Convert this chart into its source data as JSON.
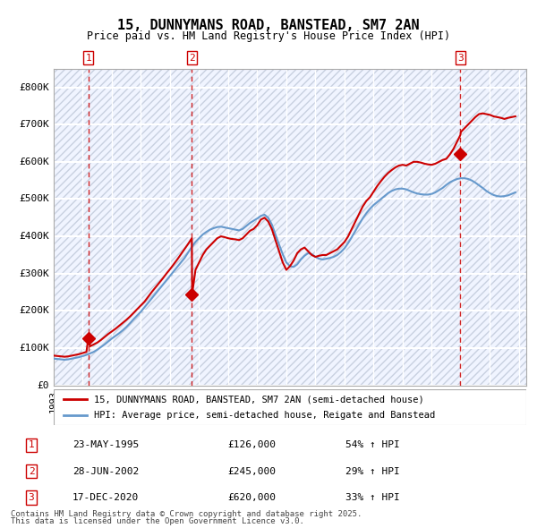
{
  "title": "15, DUNNYMANS ROAD, BANSTEAD, SM7 2AN",
  "subtitle": "Price paid vs. HM Land Registry's House Price Index (HPI)",
  "red_line_label": "15, DUNNYMANS ROAD, BANSTEAD, SM7 2AN (semi-detached house)",
  "blue_line_label": "HPI: Average price, semi-detached house, Reigate and Banstead",
  "sale_dates": [
    "1995-05-23",
    "2002-06-28",
    "2020-12-17"
  ],
  "sale_prices": [
    126000,
    245000,
    620000
  ],
  "sale_labels": [
    "1",
    "2",
    "3"
  ],
  "sale_hpi_pct": [
    "54% ↑ HPI",
    "29% ↑ HPI",
    "33% ↑ HPI"
  ],
  "sale_dates_display": [
    "23-MAY-1995",
    "28-JUN-2002",
    "17-DEC-2020"
  ],
  "sale_prices_display": [
    "£126,000",
    "£245,000",
    "£620,000"
  ],
  "footnote1": "Contains HM Land Registry data © Crown copyright and database right 2025.",
  "footnote2": "This data is licensed under the Open Government Licence v3.0.",
  "ylim": [
    0,
    850000
  ],
  "yticks": [
    0,
    100000,
    200000,
    300000,
    400000,
    500000,
    600000,
    700000,
    800000
  ],
  "ytick_labels": [
    "£0",
    "£100K",
    "£200K",
    "£300K",
    "£400K",
    "£500K",
    "£600K",
    "£700K",
    "£800K"
  ],
  "red_color": "#cc0000",
  "blue_color": "#6699cc",
  "background_color": "#ffffff",
  "plot_bg_color": "#f0f4ff",
  "grid_color": "#ffffff",
  "hatch_color": "#c8d0e0",
  "vline_color": "#cc0000",
  "label_box_color": "#cc0000",
  "red_data": {
    "years": [
      1993.0,
      1993.25,
      1993.5,
      1993.75,
      1994.0,
      1994.25,
      1994.5,
      1994.75,
      1995.0,
      1995.25,
      1995.38,
      1995.5,
      1995.75,
      1996.0,
      1996.25,
      1996.5,
      1996.75,
      1997.0,
      1997.25,
      1997.5,
      1997.75,
      1998.0,
      1998.25,
      1998.5,
      1998.75,
      1999.0,
      1999.25,
      1999.5,
      1999.75,
      2000.0,
      2000.25,
      2000.5,
      2000.75,
      2001.0,
      2001.25,
      2001.5,
      2001.75,
      2002.0,
      2002.25,
      2002.5,
      2002.52,
      2002.75,
      2003.0,
      2003.25,
      2003.5,
      2003.75,
      2004.0,
      2004.25,
      2004.5,
      2004.75,
      2005.0,
      2005.25,
      2005.5,
      2005.75,
      2006.0,
      2006.25,
      2006.5,
      2006.75,
      2007.0,
      2007.25,
      2007.5,
      2007.75,
      2008.0,
      2008.25,
      2008.5,
      2008.75,
      2009.0,
      2009.25,
      2009.5,
      2009.75,
      2010.0,
      2010.25,
      2010.5,
      2010.75,
      2011.0,
      2011.25,
      2011.5,
      2011.75,
      2012.0,
      2012.25,
      2012.5,
      2012.75,
      2013.0,
      2013.25,
      2013.5,
      2013.75,
      2014.0,
      2014.25,
      2014.5,
      2014.75,
      2015.0,
      2015.25,
      2015.5,
      2015.75,
      2016.0,
      2016.25,
      2016.5,
      2016.75,
      2017.0,
      2017.25,
      2017.5,
      2017.75,
      2018.0,
      2018.25,
      2018.5,
      2018.75,
      2019.0,
      2019.25,
      2019.5,
      2019.75,
      2020.0,
      2020.25,
      2020.5,
      2020.75,
      2020.97,
      2021.0,
      2021.25,
      2021.5,
      2021.75,
      2022.0,
      2022.25,
      2022.5,
      2022.75,
      2023.0,
      2023.25,
      2023.5,
      2023.75,
      2024.0,
      2024.25,
      2024.5,
      2024.75
    ],
    "values": [
      80000,
      79000,
      78000,
      77000,
      78000,
      80000,
      82000,
      84000,
      87000,
      90000,
      126000,
      105000,
      110000,
      115000,
      122000,
      130000,
      138000,
      145000,
      152000,
      160000,
      168000,
      176000,
      185000,
      195000,
      205000,
      215000,
      225000,
      238000,
      251000,
      263000,
      275000,
      287000,
      300000,
      312000,
      325000,
      338000,
      352000,
      366000,
      380000,
      395000,
      245000,
      310000,
      330000,
      350000,
      365000,
      375000,
      385000,
      395000,
      400000,
      398000,
      395000,
      393000,
      392000,
      390000,
      395000,
      405000,
      415000,
      420000,
      430000,
      445000,
      450000,
      440000,
      420000,
      390000,
      360000,
      330000,
      310000,
      320000,
      335000,
      355000,
      365000,
      370000,
      360000,
      350000,
      345000,
      348000,
      350000,
      350000,
      355000,
      360000,
      365000,
      375000,
      385000,
      400000,
      420000,
      440000,
      460000,
      480000,
      495000,
      505000,
      520000,
      535000,
      548000,
      560000,
      570000,
      578000,
      585000,
      590000,
      592000,
      590000,
      595000,
      600000,
      600000,
      598000,
      595000,
      593000,
      592000,
      595000,
      600000,
      605000,
      608000,
      620000,
      635000,
      655000,
      672000,
      680000,
      690000,
      700000,
      710000,
      720000,
      728000,
      730000,
      728000,
      726000,
      722000,
      720000,
      718000,
      715000,
      718000,
      720000,
      722000
    ]
  },
  "blue_data": {
    "years": [
      1993.0,
      1993.25,
      1993.5,
      1993.75,
      1994.0,
      1994.25,
      1994.5,
      1994.75,
      1995.0,
      1995.25,
      1995.5,
      1995.75,
      1996.0,
      1996.25,
      1996.5,
      1996.75,
      1997.0,
      1997.25,
      1997.5,
      1997.75,
      1998.0,
      1998.25,
      1998.5,
      1998.75,
      1999.0,
      1999.25,
      1999.5,
      1999.75,
      2000.0,
      2000.25,
      2000.5,
      2000.75,
      2001.0,
      2001.25,
      2001.5,
      2001.75,
      2002.0,
      2002.25,
      2002.5,
      2002.75,
      2003.0,
      2003.25,
      2003.5,
      2003.75,
      2004.0,
      2004.25,
      2004.5,
      2004.75,
      2005.0,
      2005.25,
      2005.5,
      2005.75,
      2006.0,
      2006.25,
      2006.5,
      2006.75,
      2007.0,
      2007.25,
      2007.5,
      2007.75,
      2008.0,
      2008.25,
      2008.5,
      2008.75,
      2009.0,
      2009.25,
      2009.5,
      2009.75,
      2010.0,
      2010.25,
      2010.5,
      2010.75,
      2011.0,
      2011.25,
      2011.5,
      2011.75,
      2012.0,
      2012.25,
      2012.5,
      2012.75,
      2013.0,
      2013.25,
      2013.5,
      2013.75,
      2014.0,
      2014.25,
      2014.5,
      2014.75,
      2015.0,
      2015.25,
      2015.5,
      2015.75,
      2016.0,
      2016.25,
      2016.5,
      2016.75,
      2017.0,
      2017.25,
      2017.5,
      2017.75,
      2018.0,
      2018.25,
      2018.5,
      2018.75,
      2019.0,
      2019.25,
      2019.5,
      2019.75,
      2020.0,
      2020.25,
      2020.5,
      2020.75,
      2021.0,
      2021.25,
      2021.5,
      2021.75,
      2022.0,
      2022.25,
      2022.5,
      2022.75,
      2023.0,
      2023.25,
      2023.5,
      2023.75,
      2024.0,
      2024.25,
      2024.5,
      2024.75
    ],
    "values": [
      72000,
      71000,
      70000,
      69000,
      70000,
      72000,
      74000,
      76000,
      79000,
      82000,
      86000,
      90000,
      96000,
      103000,
      110000,
      118000,
      126000,
      133000,
      140000,
      148000,
      157000,
      167000,
      178000,
      188000,
      198000,
      210000,
      222000,
      234000,
      246000,
      258000,
      270000,
      282000,
      294000,
      306000,
      318000,
      330000,
      342000,
      357000,
      372000,
      385000,
      395000,
      405000,
      412000,
      418000,
      422000,
      425000,
      426000,
      424000,
      422000,
      420000,
      418000,
      416000,
      420000,
      428000,
      436000,
      442000,
      448000,
      455000,
      458000,
      450000,
      432000,
      405000,
      378000,
      352000,
      330000,
      320000,
      318000,
      325000,
      338000,
      348000,
      355000,
      352000,
      345000,
      340000,
      338000,
      340000,
      342000,
      345000,
      350000,
      358000,
      368000,
      382000,
      398000,
      415000,
      432000,
      448000,
      462000,
      474000,
      484000,
      492000,
      500000,
      508000,
      516000,
      522000,
      526000,
      528000,
      528000,
      526000,
      522000,
      518000,
      515000,
      513000,
      512000,
      512000,
      514000,
      518000,
      524000,
      530000,
      538000,
      545000,
      550000,
      554000,
      556000,
      556000,
      554000,
      550000,
      544000,
      537000,
      530000,
      522000,
      516000,
      511000,
      508000,
      507000,
      508000,
      510000,
      514000,
      518000
    ]
  }
}
